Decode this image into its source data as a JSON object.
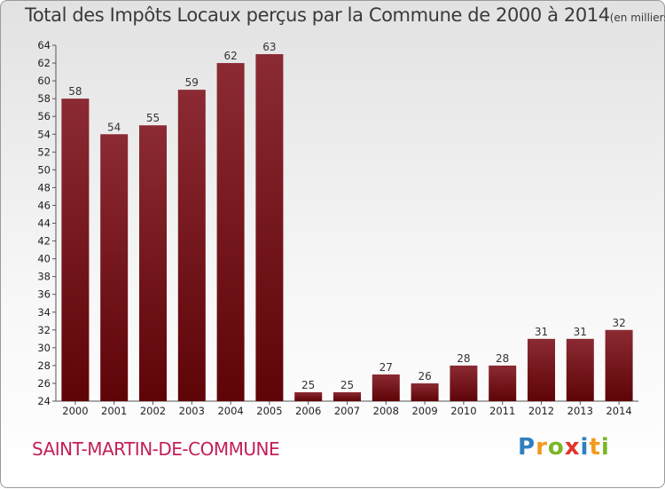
{
  "title": "Total des Impôts Locaux perçus par la Commune de 2000 à 2014",
  "title_unit": "(en milliers d'€)",
  "commune": "SAINT-MARTIN-DE-COMMUNE",
  "logo": {
    "text": "Proxiti",
    "colors": [
      "#2f7fc1",
      "#f29a1d",
      "#7ab628",
      "#e2332c",
      "#2f7fc1",
      "#f29a1d",
      "#7ab628"
    ]
  },
  "colors": {
    "bar_top": "#8b2a33",
    "bar_bottom": "#5e0407",
    "commune_text": "#c21f5a"
  },
  "chart_data": {
    "type": "bar",
    "title": "Total des Impôts Locaux perçus par la Commune de 2000 à 2014",
    "categories": [
      "2000",
      "2001",
      "2002",
      "2003",
      "2004",
      "2005",
      "2006",
      "2007",
      "2008",
      "2009",
      "2010",
      "2011",
      "2012",
      "2013",
      "2014"
    ],
    "values": [
      58,
      54,
      55,
      59,
      62,
      63,
      25,
      25,
      27,
      26,
      28,
      28,
      31,
      31,
      32
    ],
    "ylim": [
      24,
      64
    ],
    "ytick_step": 2,
    "grid": false,
    "xlabel": "",
    "ylabel": ""
  }
}
